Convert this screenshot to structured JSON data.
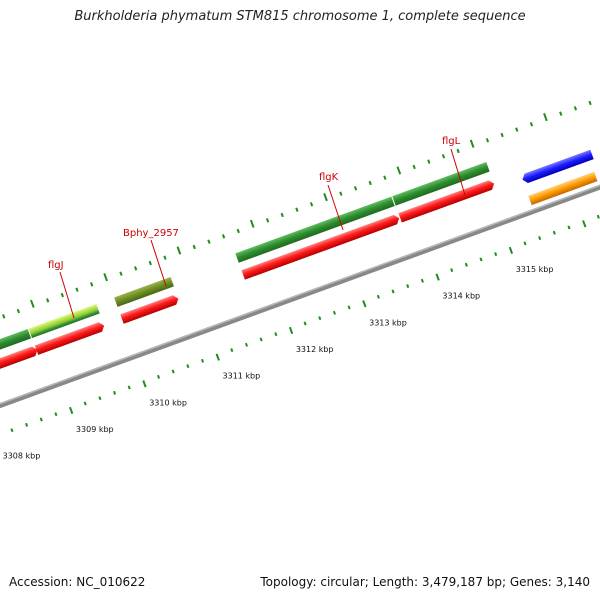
{
  "title": "Burkholderia phymatum STM815 chromosome 1, complete sequence",
  "footer": {
    "accession": "Accession: NC_010622",
    "summary": "Topology: circular; Length: 3,479,187 bp; Genes: 3,140"
  },
  "colors": {
    "gene_dark_green": "#2e8b2e",
    "gene_light_green": "#9acd32",
    "gene_olive": "#6b8e23",
    "cds_red": "#ff1a1a",
    "other_blue": "#1a1aff",
    "other_orange": "#ff9900",
    "backbone": "#808080",
    "tick_green": "#228b22",
    "label_red": "#cc0000"
  },
  "scale_labels": [
    "3308 kbp",
    "3309 kbp",
    "3310 kbp",
    "3311 kbp",
    "3312 kbp",
    "3313 kbp",
    "3314 kbp",
    "3315 kbp"
  ],
  "gene_labels": [
    "flgJ",
    "Bphy_2957",
    "flgK",
    "flgL"
  ]
}
